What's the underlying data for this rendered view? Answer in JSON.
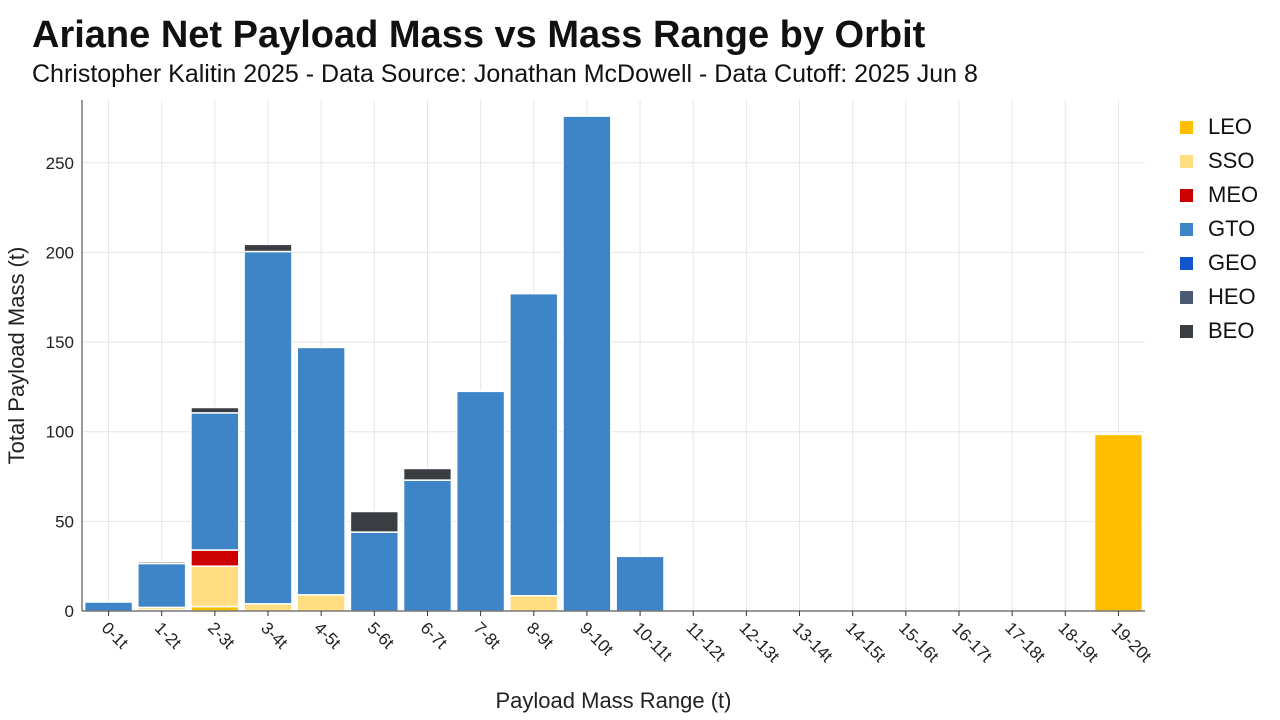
{
  "header": {
    "title": "Ariane Net Payload Mass vs Mass Range by Orbit",
    "subtitle": "Christopher Kalitin 2025 - Data Source: Jonathan McDowell - Data Cutoff: 2025 Jun 8"
  },
  "chart_data": {
    "type": "bar",
    "stacked": true,
    "xlabel": "Payload Mass Range (t)",
    "ylabel": "Total Payload Mass (t)",
    "ylim": [
      0,
      285
    ],
    "yticks": [
      0,
      50,
      100,
      150,
      200,
      250
    ],
    "grid": true,
    "legend_position": "right",
    "categories": [
      "0-1t",
      "1-2t",
      "2-3t",
      "3-4t",
      "4-5t",
      "5-6t",
      "6-7t",
      "7-8t",
      "8-9t",
      "9-10t",
      "10-11t",
      "11-12t",
      "12-13t",
      "13-14t",
      "14-15t",
      "15-16t",
      "16-17t",
      "17-18t",
      "18-19t",
      "19-20t"
    ],
    "series": [
      {
        "name": "LEO",
        "color": "#ffbf00",
        "values": [
          0,
          0.5,
          2.5,
          0,
          0,
          0,
          0,
          0,
          0,
          0,
          0,
          0,
          0,
          0,
          0,
          0,
          0,
          0,
          0,
          98.5
        ]
      },
      {
        "name": "SSO",
        "color": "#ffdd80",
        "values": [
          0,
          1.5,
          22.5,
          4,
          9,
          0,
          0,
          0,
          8.5,
          0,
          0,
          0,
          0,
          0,
          0,
          0,
          0,
          0,
          0,
          0
        ]
      },
      {
        "name": "MEO",
        "color": "#cc0000",
        "values": [
          0,
          0,
          9,
          0,
          0,
          0,
          0,
          0,
          0,
          0,
          0,
          0,
          0,
          0,
          0,
          0,
          0,
          0,
          0,
          0
        ]
      },
      {
        "name": "GTO",
        "color": "#3d85c6",
        "values": [
          5,
          24.5,
          76.5,
          196.5,
          138,
          44,
          73,
          122.5,
          168.5,
          276,
          30.5,
          0,
          0,
          0,
          0,
          0,
          0,
          0,
          0,
          0
        ]
      },
      {
        "name": "GEO",
        "color": "#1155cc",
        "values": [
          0,
          0,
          0,
          0,
          0,
          0,
          0,
          0,
          0,
          0,
          0,
          0,
          0,
          0,
          0,
          0,
          0,
          0,
          0,
          0
        ]
      },
      {
        "name": "HEO",
        "color": "#4a5a72",
        "values": [
          0,
          0,
          0,
          0,
          0,
          0,
          0,
          0,
          0,
          0,
          0,
          0,
          0,
          0,
          0,
          0,
          0,
          0,
          0,
          0
        ]
      },
      {
        "name": "BEO",
        "color": "#3a3d42",
        "values": [
          0,
          1,
          3,
          4,
          0,
          11.5,
          6.5,
          0,
          0,
          0,
          0,
          0,
          0,
          0,
          0,
          0,
          0,
          0,
          0,
          0
        ]
      }
    ]
  }
}
